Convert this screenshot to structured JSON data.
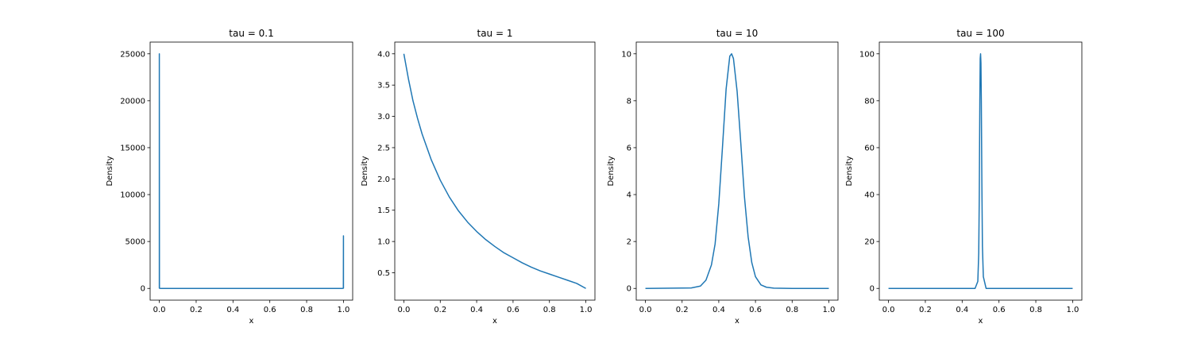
{
  "chart_data": [
    {
      "type": "line",
      "title": "tau = 0.1",
      "xlabel": "x",
      "ylabel": "Density",
      "xlim": [
        -0.05,
        1.05
      ],
      "ylim": [
        -1250,
        26250
      ],
      "xticks": [
        0.0,
        0.2,
        0.4,
        0.6,
        0.8,
        1.0
      ],
      "xtick_labels": [
        "0.0",
        "0.2",
        "0.4",
        "0.6",
        "0.8",
        "1.0"
      ],
      "yticks": [
        0,
        5000,
        10000,
        15000,
        20000,
        25000
      ],
      "ytick_labels": [
        "0",
        "5000",
        "10000",
        "15000",
        "20000",
        "25000"
      ],
      "grid": false,
      "color": "#1f77b4",
      "x": [
        0.0,
        0.0,
        0.0006,
        0.002,
        0.01,
        0.1,
        0.2,
        0.3,
        0.4,
        0.5,
        0.6,
        0.7,
        0.8,
        0.9,
        0.99,
        0.998,
        0.9994,
        1.0,
        1.0
      ],
      "y": [
        0,
        25000,
        40,
        5,
        2,
        1,
        1,
        1,
        1,
        1,
        1,
        1,
        1,
        1,
        2,
        5,
        40,
        5600,
        0
      ]
    },
    {
      "type": "line",
      "title": "tau = 1",
      "xlabel": "x",
      "ylabel": "Density",
      "xlim": [
        -0.05,
        1.05
      ],
      "ylim": [
        0.0625,
        4.1875
      ],
      "xticks": [
        0.0,
        0.2,
        0.4,
        0.6,
        0.8,
        1.0
      ],
      "xtick_labels": [
        "0.0",
        "0.2",
        "0.4",
        "0.6",
        "0.8",
        "1.0"
      ],
      "yticks": [
        0.5,
        1.0,
        1.5,
        2.0,
        2.5,
        3.0,
        3.5,
        4.0
      ],
      "ytick_labels": [
        "0.5",
        "1.0",
        "1.5",
        "2.0",
        "2.5",
        "3.0",
        "3.5",
        "4.0"
      ],
      "grid": false,
      "color": "#1f77b4",
      "x": [
        0.0,
        0.025,
        0.05,
        0.075,
        0.1,
        0.15,
        0.2,
        0.25,
        0.3,
        0.35,
        0.4,
        0.45,
        0.5,
        0.55,
        0.6,
        0.65,
        0.7,
        0.75,
        0.8,
        0.85,
        0.9,
        0.95,
        1.0
      ],
      "y": [
        4.0,
        3.6,
        3.25,
        2.97,
        2.72,
        2.31,
        1.98,
        1.71,
        1.49,
        1.31,
        1.16,
        1.03,
        0.92,
        0.82,
        0.74,
        0.66,
        0.59,
        0.53,
        0.48,
        0.43,
        0.38,
        0.33,
        0.25
      ]
    },
    {
      "type": "line",
      "title": "tau = 10",
      "xlabel": "x",
      "ylabel": "Density",
      "xlim": [
        -0.05,
        1.05
      ],
      "ylim": [
        -0.5,
        10.5
      ],
      "xticks": [
        0.0,
        0.2,
        0.4,
        0.6,
        0.8,
        1.0
      ],
      "xtick_labels": [
        "0.0",
        "0.2",
        "0.4",
        "0.6",
        "0.8",
        "1.0"
      ],
      "yticks": [
        0,
        2,
        4,
        6,
        8,
        10
      ],
      "ytick_labels": [
        "0",
        "2",
        "4",
        "6",
        "8",
        "10"
      ],
      "grid": false,
      "color": "#1f77b4",
      "x": [
        0.0,
        0.25,
        0.3,
        0.33,
        0.36,
        0.38,
        0.4,
        0.42,
        0.44,
        0.46,
        0.47,
        0.48,
        0.5,
        0.52,
        0.54,
        0.56,
        0.58,
        0.6,
        0.63,
        0.66,
        0.7,
        0.8,
        1.0
      ],
      "y": [
        0,
        0.02,
        0.1,
        0.35,
        1.0,
        1.9,
        3.6,
        6.0,
        8.5,
        9.9,
        10.0,
        9.8,
        8.4,
        6.2,
        3.9,
        2.2,
        1.1,
        0.5,
        0.15,
        0.05,
        0.01,
        0,
        0
      ]
    },
    {
      "type": "line",
      "title": "tau = 100",
      "xlabel": "x",
      "ylabel": "Density",
      "xlim": [
        -0.05,
        1.05
      ],
      "ylim": [
        -5,
        105
      ],
      "xticks": [
        0.0,
        0.2,
        0.4,
        0.6,
        0.8,
        1.0
      ],
      "xtick_labels": [
        "0.0",
        "0.2",
        "0.4",
        "0.6",
        "0.8",
        "1.0"
      ],
      "yticks": [
        0,
        20,
        40,
        60,
        80,
        100
      ],
      "ytick_labels": [
        "0",
        "20",
        "40",
        "60",
        "80",
        "100"
      ],
      "grid": false,
      "color": "#1f77b4",
      "x": [
        0.0,
        0.47,
        0.485,
        0.49,
        0.493,
        0.496,
        0.498,
        0.5,
        0.502,
        0.504,
        0.507,
        0.51,
        0.515,
        0.53,
        1.0
      ],
      "y": [
        0,
        0,
        3,
        15,
        40,
        80,
        98,
        100,
        96,
        80,
        45,
        18,
        5,
        0,
        0
      ]
    }
  ]
}
